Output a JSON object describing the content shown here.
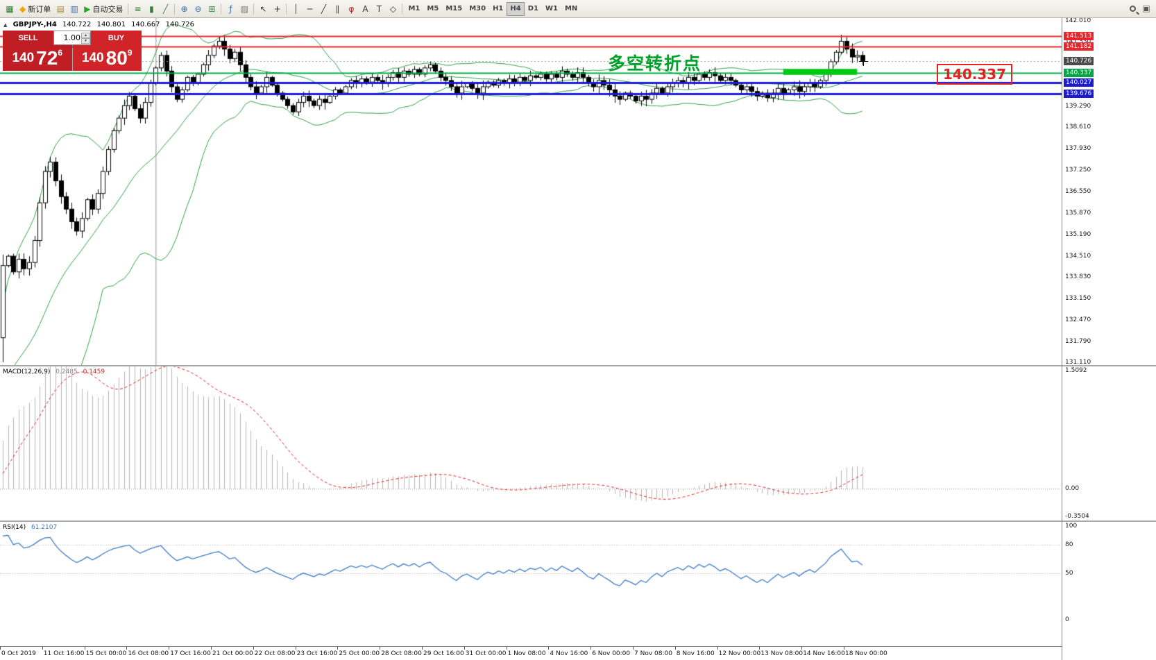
{
  "toolbar": {
    "left": [
      {
        "name": "new-chart-button",
        "glyph": "▦",
        "color": "#2e7d32"
      },
      {
        "name": "new-order-button",
        "glyph": "◆",
        "color": "#f0a500",
        "label": "新订单"
      },
      {
        "name": "chart-profiles-button",
        "glyph": "▤",
        "color": "#b08d2f"
      },
      {
        "name": "data-window-button",
        "glyph": "▥",
        "color": "#4a6ea9"
      },
      {
        "name": "auto-trading-button",
        "glyph": "▶",
        "color": "#27a527",
        "label": "自动交易"
      },
      "sep",
      {
        "name": "bar-chart-button",
        "glyph": "≡",
        "color": "#3a7d3a"
      },
      {
        "name": "candlestick-chart-button",
        "glyph": "▮",
        "color": "#3a7d3a"
      },
      {
        "name": "line-chart-button",
        "glyph": "╱",
        "color": "#3a7d3a"
      },
      "sep",
      {
        "name": "zoom-in-button",
        "glyph": "⊕",
        "color": "#2f6fb2"
      },
      {
        "name": "zoom-out-button",
        "glyph": "⊖",
        "color": "#2f6fb2"
      },
      {
        "name": "tile-windows-button",
        "glyph": "⊞",
        "color": "#2f8f4f"
      },
      "sep",
      {
        "name": "indicators-button",
        "glyph": "ƒ",
        "color": "#2f6fb2"
      },
      {
        "name": "templates-button",
        "glyph": "▨",
        "color": "#777777"
      },
      "sep",
      {
        "name": "cursor-button",
        "glyph": "↖",
        "color": "#333333"
      },
      {
        "name": "crosshair-button",
        "glyph": "+",
        "color": "#333333"
      },
      "sep",
      {
        "name": "vertical-line-button",
        "glyph": "│",
        "color": "#333333"
      },
      {
        "name": "horizontal-line-button",
        "glyph": "─",
        "color": "#333333"
      },
      {
        "name": "trendline-button",
        "glyph": "╱",
        "color": "#333333"
      },
      {
        "name": "channel-button",
        "glyph": "∥",
        "color": "#333333"
      },
      {
        "name": "fibonacci-button",
        "glyph": "φ",
        "color": "#b03030"
      },
      {
        "name": "text-button",
        "glyph": "A",
        "color": "#333333"
      },
      {
        "name": "label-button",
        "glyph": "T",
        "color": "#333333"
      },
      {
        "name": "shapes-button",
        "glyph": "◇",
        "color": "#333333"
      },
      "sep"
    ],
    "timeframes": [
      "M1",
      "M5",
      "M15",
      "M30",
      "H1",
      "H4",
      "D1",
      "W1",
      "MN"
    ],
    "active_timeframe": "H4",
    "right": [
      {
        "name": "search-button",
        "type": "search"
      },
      {
        "name": "new-window-button",
        "glyph": "▣",
        "color": "#555555"
      }
    ]
  },
  "chart_header": {
    "expand_icon": "▲",
    "symbol": "GBPJPY-,H4",
    "open": "140.722",
    "high": "140.801",
    "low": "140.667",
    "close": "140.726"
  },
  "trade_panel": {
    "sell_label": "SELL",
    "buy_label": "BUY",
    "volume": "1.00",
    "spinner_up": "▲",
    "spinner_down": "▼",
    "sell_price_base": "140",
    "sell_price_big": "72",
    "sell_price_sup": "6",
    "buy_price_base": "140",
    "buy_price_big": "80",
    "buy_price_sup": "9",
    "sell_bg": "#bf1e24",
    "buy_bg": "#d02428"
  },
  "annotations": {
    "turning_point": "多空转折点",
    "price_callout": "140.337"
  },
  "indicators": {
    "macd_label": "MACD(12,26,9)",
    "macd_value": "0.2485",
    "macd_signal": "0.1459",
    "rsi_label": "RSI(14)",
    "rsi_value": "61.2107"
  },
  "axes": {
    "main_labels": [
      "142.010",
      "141.330",
      "139.290",
      "138.610",
      "137.930",
      "137.250",
      "136.550",
      "135.870",
      "135.190",
      "134.510",
      "133.830",
      "133.150",
      "132.470",
      "131.790",
      "131.110"
    ],
    "main_badges": [
      {
        "text": "141.513",
        "bg": "#e8262d"
      },
      {
        "text": "141.182",
        "bg": "#e8262d"
      },
      {
        "text": "140.726",
        "bg": "#4a4a4a"
      },
      {
        "text": "140.337",
        "bg": "#00a843"
      },
      {
        "text": "140.027",
        "bg": "#1b1bd4"
      },
      {
        "text": "139.676",
        "bg": "#1b1bd4"
      }
    ],
    "macd_labels": [
      "1.5092",
      "0.00",
      "-0.3504"
    ],
    "rsi_labels": [
      "100",
      "80",
      "50",
      "0"
    ],
    "time": [
      "0 Oct 2019",
      "11 Oct 16:00",
      "15 Oct 00:00",
      "16 Oct 08:00",
      "17 Oct 16:00",
      "21 Oct 00:00",
      "22 Oct 08:00",
      "23 Oct 16:00",
      "25 Oct 00:00",
      "28 Oct 08:00",
      "29 Oct 16:00",
      "31 Oct 00:00",
      "1 Nov 08:00",
      "4 Nov 16:00",
      "6 Nov 00:00",
      "7 Nov 08:00",
      "8 Nov 16:00",
      "12 Nov 00:00",
      "13 Nov 08:00",
      "14 Nov 16:00",
      "18 Nov 00:00"
    ]
  },
  "chart_data": {
    "type": "candlestick",
    "symbol": "GBPJPY",
    "timeframe": "H4",
    "title": "GBPJPY-,H4",
    "current_price": 140.726,
    "ohlc_display": {
      "open": 140.722,
      "high": 140.801,
      "low": 140.667,
      "close": 140.726
    },
    "ylim_main": [
      131.11,
      142.01
    ],
    "warmup_closes": [
      130.8,
      130.7,
      130.6,
      130.5,
      130.4,
      130.3,
      130.2,
      130.1,
      130.0,
      129.9,
      129.8,
      129.7,
      129.6,
      129.5,
      129.4,
      129.3,
      129.3,
      129.4,
      129.5,
      129.7,
      129.9,
      130.2,
      130.5,
      130.8,
      131.1,
      131.3,
      131.5,
      131.6,
      131.75,
      131.9
    ],
    "closes": [
      134.2,
      134.5,
      134.0,
      134.4,
      134.1,
      134.3,
      135.0,
      136.2,
      137.2,
      137.5,
      136.9,
      136.4,
      136.0,
      135.6,
      135.3,
      135.7,
      136.3,
      136.0,
      136.5,
      137.2,
      137.9,
      138.5,
      138.9,
      139.3,
      139.6,
      139.2,
      138.9,
      139.4,
      140.0,
      140.5,
      140.9,
      140.4,
      139.9,
      139.5,
      139.8,
      140.2,
      140.0,
      140.3,
      140.6,
      140.9,
      141.2,
      141.35,
      141.1,
      140.8,
      141.0,
      140.6,
      140.2,
      139.9,
      139.7,
      139.9,
      140.2,
      139.95,
      139.7,
      139.5,
      139.3,
      139.1,
      139.4,
      139.6,
      139.45,
      139.3,
      139.5,
      139.4,
      139.6,
      139.8,
      139.7,
      139.9,
      140.1,
      140.0,
      140.15,
      140.05,
      140.2,
      140.1,
      140.0,
      140.2,
      140.35,
      140.2,
      140.4,
      140.3,
      140.45,
      140.3,
      140.5,
      140.6,
      140.4,
      140.2,
      140.1,
      139.9,
      139.7,
      139.9,
      140.0,
      139.85,
      139.7,
      139.9,
      140.05,
      139.95,
      140.1,
      140.0,
      140.15,
      140.05,
      140.2,
      140.1,
      140.25,
      140.2,
      140.3,
      140.15,
      140.3,
      140.2,
      140.4,
      140.3,
      140.2,
      140.35,
      140.2,
      140.0,
      139.9,
      140.1,
      139.95,
      139.8,
      139.6,
      139.5,
      139.7,
      139.6,
      139.45,
      139.6,
      139.5,
      139.7,
      139.85,
      139.7,
      139.9,
      140.0,
      140.1,
      140.0,
      140.2,
      140.1,
      140.3,
      140.2,
      140.35,
      140.25,
      140.1,
      140.2,
      140.1,
      139.95,
      139.8,
      139.9,
      139.75,
      139.6,
      139.7,
      139.55,
      139.7,
      139.85,
      139.7,
      139.8,
      139.9,
      139.75,
      139.9,
      140.0,
      139.9,
      140.1,
      140.3,
      140.7,
      141.0,
      141.35,
      141.1,
      140.85,
      140.9,
      140.73
    ],
    "wick_overrides": {
      "0": {
        "low": 131.12,
        "high": 134.55
      },
      "41": {
        "high": 141.5
      },
      "159": {
        "high": 141.56
      }
    },
    "candle_up": "#ffffff",
    "candle_down": "#000000",
    "candle_outline": "#000000",
    "bollinger": {
      "period": 20,
      "deviation": 2,
      "color": "#2f9e45"
    },
    "macd": {
      "fast": 12,
      "slow": 26,
      "signal": 9,
      "value": 0.2485,
      "signal_value": 0.1459,
      "hist_color": "#b4b4b4",
      "signal_color": "#e02020",
      "range": [
        -0.3504,
        1.5092
      ]
    },
    "rsi": {
      "period": 14,
      "value": 61.2107,
      "color": "#3e7bc4",
      "levels": [
        80,
        50
      ],
      "range": [
        0,
        100
      ]
    },
    "hlines": [
      {
        "value": 141.513,
        "color": "#e8262d",
        "width": 2
      },
      {
        "value": 141.182,
        "color": "#e8262d",
        "width": 2
      },
      {
        "value": 140.337,
        "color": "#00a843",
        "width": 2
      },
      {
        "value": 140.027,
        "color": "#1b1bd4",
        "width": 3
      },
      {
        "value": 139.676,
        "color": "#1b1bd4",
        "width": 3
      }
    ],
    "bid_line": {
      "value": 140.726,
      "color": "#999999",
      "style": "dotted"
    },
    "green_zone": {
      "from_bar": 148,
      "to_bar": 162,
      "price_top": 140.47,
      "price_bottom": 140.28,
      "color": "#00c814"
    },
    "vline_bar": 29,
    "vline_color": "#909090",
    "layout": {
      "bar_step": 7.6,
      "body_width": 5,
      "price_top": 142.09,
      "price_bottom": 131.03,
      "time_label_step_bars": 8
    }
  }
}
